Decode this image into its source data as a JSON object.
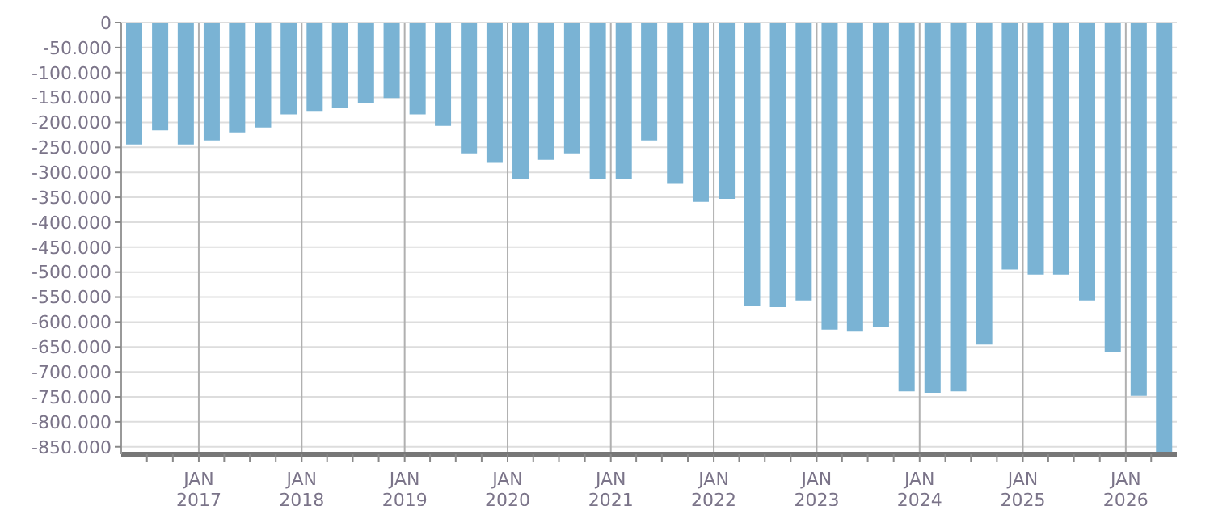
{
  "chart_data": {
    "type": "bar",
    "x": [
      "2016-05-16",
      "2016-08-16",
      "2016-11-15",
      "2017-02-15",
      "2017-05-16",
      "2017-08-16",
      "2017-11-15",
      "2018-02-15",
      "2018-05-16",
      "2018-08-16",
      "2018-11-15",
      "2019-02-15",
      "2019-05-16",
      "2019-08-16",
      "2019-11-15",
      "2020-02-15",
      "2020-05-16",
      "2020-08-16",
      "2020-11-15",
      "2021-02-15",
      "2021-05-16",
      "2021-08-16",
      "2021-11-15",
      "2022-02-15",
      "2022-05-16",
      "2022-08-16",
      "2022-11-15",
      "2023-02-15",
      "2023-05-16",
      "2023-08-16",
      "2023-11-15",
      "2024-02-15",
      "2024-05-16",
      "2024-08-16",
      "2024-11-15",
      "2025-02-15",
      "2025-05-16",
      "2025-08-16",
      "2025-11-15",
      "2026-02-15",
      "2026-05-16"
    ],
    "values": [
      -244000,
      -216000,
      -244000,
      -236000,
      -220000,
      -210000,
      -184000,
      -177000,
      -171000,
      -161000,
      -151000,
      -184000,
      -207000,
      -262000,
      -281000,
      -314000,
      -275000,
      -262000,
      -314000,
      -314000,
      -236000,
      -323000,
      -359000,
      -353000,
      -567000,
      -570000,
      -557000,
      -615000,
      -619000,
      -609000,
      -739000,
      -742000,
      -739000,
      -645000,
      -495000,
      -505000,
      -505000,
      -557000,
      -661000,
      -748000,
      -865000
    ],
    "color": "#7ab3d4",
    "xlim": [
      "2016-04-01",
      "2026-07-01"
    ],
    "xticks": [
      {
        "value": "2016-07-01",
        "label": null
      },
      {
        "value": "2016-10-01",
        "label": null
      },
      {
        "value": "2017-01-01",
        "label": "JAN\n2017"
      },
      {
        "value": "2017-04-01",
        "label": null
      },
      {
        "value": "2017-07-01",
        "label": null
      },
      {
        "value": "2017-10-01",
        "label": null
      },
      {
        "value": "2018-01-01",
        "label": "JAN\n2018"
      },
      {
        "value": "2018-04-01",
        "label": null
      },
      {
        "value": "2018-07-01",
        "label": null
      },
      {
        "value": "2018-10-01",
        "label": null
      },
      {
        "value": "2019-01-01",
        "label": "JAN\n2019"
      },
      {
        "value": "2019-04-01",
        "label": null
      },
      {
        "value": "2019-07-01",
        "label": null
      },
      {
        "value": "2019-10-01",
        "label": null
      },
      {
        "value": "2020-01-01",
        "label": "JAN\n2020"
      },
      {
        "value": "2020-04-01",
        "label": null
      },
      {
        "value": "2020-07-01",
        "label": null
      },
      {
        "value": "2020-10-01",
        "label": null
      },
      {
        "value": "2021-01-01",
        "label": "JAN\n2021"
      },
      {
        "value": "2021-04-01",
        "label": null
      },
      {
        "value": "2021-07-01",
        "label": null
      },
      {
        "value": "2021-10-01",
        "label": null
      },
      {
        "value": "2022-01-01",
        "label": "JAN\n2022"
      },
      {
        "value": "2022-04-01",
        "label": null
      },
      {
        "value": "2022-07-01",
        "label": null
      },
      {
        "value": "2022-10-01",
        "label": null
      },
      {
        "value": "2023-01-01",
        "label": "JAN\n2023"
      },
      {
        "value": "2023-04-01",
        "label": null
      },
      {
        "value": "2023-07-01",
        "label": null
      },
      {
        "value": "2023-10-01",
        "label": null
      },
      {
        "value": "2024-01-01",
        "label": "JAN\n2024"
      },
      {
        "value": "2024-04-01",
        "label": null
      },
      {
        "value": "2024-07-01",
        "label": null
      },
      {
        "value": "2024-10-01",
        "label": null
      },
      {
        "value": "2025-01-01",
        "label": "JAN\n2025"
      },
      {
        "value": "2025-04-01",
        "label": null
      },
      {
        "value": "2025-07-01",
        "label": null
      },
      {
        "value": "2025-10-01",
        "label": null
      },
      {
        "value": "2026-01-01",
        "label": "JAN\n2026"
      },
      {
        "value": "2026-04-01",
        "label": null
      }
    ],
    "ylim": [
      -865000,
      0
    ],
    "yticks": [
      0,
      {
        "value": -50000,
        "label": "-50.000"
      },
      {
        "value": -100000,
        "label": "-100.000"
      },
      {
        "value": -150000,
        "label": "-150.000"
      },
      {
        "value": -200000,
        "label": "-200.000"
      },
      {
        "value": -250000,
        "label": "-250.000"
      },
      {
        "value": -300000,
        "label": "-300.000"
      },
      {
        "value": -350000,
        "label": "-350.000"
      },
      {
        "value": -400000,
        "label": "-400.000"
      },
      {
        "value": -450000,
        "label": "-450.000"
      },
      {
        "value": -500000,
        "label": "-500.000"
      },
      {
        "value": -550000,
        "label": "-550.000"
      },
      {
        "value": -600000,
        "label": "-600.000"
      },
      {
        "value": -650000,
        "label": "-650.000"
      },
      {
        "value": -700000,
        "label": "-700.000"
      },
      {
        "value": -750000,
        "label": "-750.000"
      },
      {
        "value": -800000,
        "label": "-800.000"
      },
      {
        "value": -850000,
        "label": "-850.000"
      }
    ],
    "grid": true
  }
}
